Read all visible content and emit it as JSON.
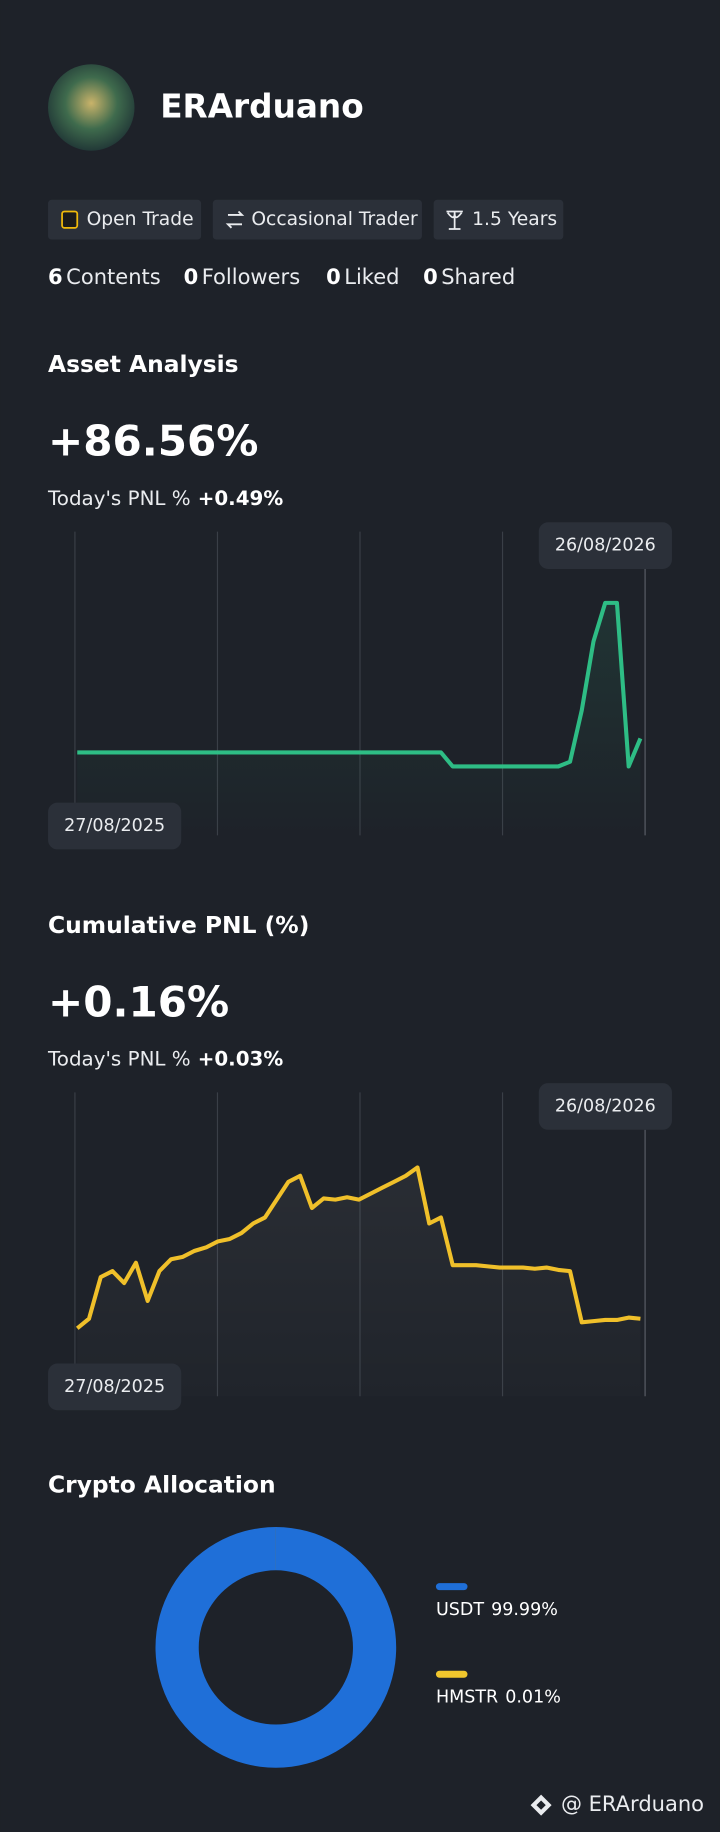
{
  "profile": {
    "name": "ERArduano",
    "tags": [
      "Open Trade",
      "Occasional Trader",
      "1.5 Years"
    ],
    "stats": [
      {
        "count": 6,
        "label": "Contents"
      },
      {
        "count": 0,
        "label": "Followers"
      },
      {
        "count": 0,
        "label": "Liked"
      },
      {
        "count": 0,
        "label": "Shared"
      }
    ]
  },
  "chart_data": [
    {
      "type": "line",
      "title": "Asset Analysis",
      "headline": "+86.56%",
      "today_label": "Today's PNL %",
      "today_value": "+0.49%",
      "categories": [
        "27/08/2025",
        null,
        null,
        null,
        null,
        null,
        null,
        null,
        null,
        null,
        null,
        null,
        null,
        null,
        null,
        null,
        null,
        null,
        null,
        null,
        null,
        null,
        null,
        null,
        null,
        null,
        null,
        null,
        null,
        null,
        null,
        null,
        null,
        null,
        null,
        null,
        null,
        null,
        null,
        null,
        null,
        null,
        null,
        null,
        null,
        null,
        null,
        null,
        "26/08/2026"
      ],
      "values": [
        0,
        0,
        0,
        0,
        0,
        0,
        0,
        0,
        0,
        0,
        0,
        0,
        0,
        0,
        0,
        0,
        0,
        0,
        0,
        0,
        0,
        0,
        0,
        0,
        0,
        0,
        0,
        0,
        0,
        0,
        0,
        0,
        -12,
        -12,
        -12,
        -12,
        -12,
        -12,
        -12,
        -12,
        -12,
        -12,
        -8,
        36,
        95,
        128,
        128,
        -12,
        12
      ],
      "color": "#2ebd85",
      "ylim": [
        -71,
        189
      ]
    },
    {
      "type": "line",
      "title": "Cumulative PNL (%)",
      "headline": "+0.16%",
      "today_label": "Today's PNL %",
      "today_value": "+0.03%",
      "categories": [
        "27/08/2025",
        null,
        null,
        null,
        null,
        null,
        null,
        null,
        null,
        null,
        null,
        null,
        null,
        null,
        null,
        null,
        null,
        null,
        null,
        null,
        null,
        null,
        null,
        null,
        null,
        null,
        null,
        null,
        null,
        null,
        null,
        null,
        null,
        null,
        null,
        null,
        null,
        null,
        null,
        null,
        null,
        null,
        null,
        null,
        null,
        null,
        null,
        null,
        "26/08/2026"
      ],
      "values": [
        7,
        15,
        50,
        55,
        45,
        62,
        30,
        55,
        65,
        67,
        72,
        75,
        80,
        82,
        87,
        95,
        100,
        115,
        130,
        135,
        108,
        116,
        115,
        117,
        115,
        120,
        125,
        130,
        135,
        142,
        95,
        100,
        60,
        60,
        60,
        59,
        58,
        58,
        58,
        57,
        58,
        56,
        55,
        12,
        13,
        14,
        14,
        16,
        15
      ],
      "color": "#f0c02a",
      "ylim": [
        -50,
        205
      ]
    },
    {
      "type": "pie",
      "title": "Crypto Allocation",
      "categories": [
        "USDT",
        "HMSTR"
      ],
      "values": [
        99.99,
        0.01
      ],
      "value_labels": [
        "99.99%",
        "0.01%"
      ],
      "colors": [
        "#1f6fd8",
        "#f0c62d"
      ]
    }
  ],
  "footer": "@ ERArduano"
}
